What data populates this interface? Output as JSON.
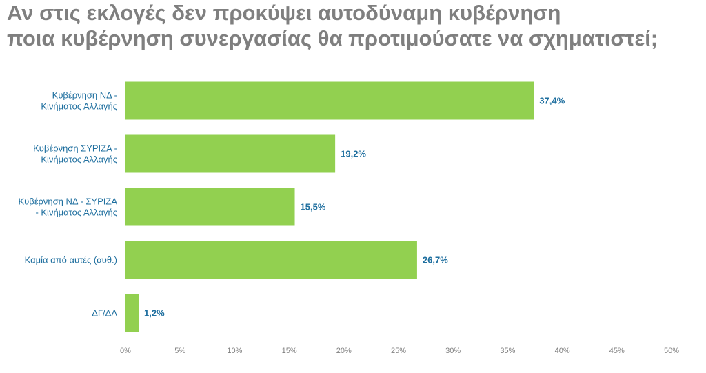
{
  "title_lines": [
    "Αν στις εκλογές δεν προκύψει αυτοδύναμη κυβέρνηση",
    "ποια κυβέρνηση συνεργασίας θα προτιμούσατε να σχηματιστεί;"
  ],
  "chart_data": {
    "type": "bar",
    "orientation": "horizontal",
    "title": "Αν στις εκλογές δεν προκύψει αυτοδύναμη κυβέρνηση ποια κυβέρνηση συνεργασίας θα προτιμούσατε να σχηματιστεί;",
    "categories": [
      [
        "Κυβέρνηση ΝΔ -",
        "Κινήματος Αλλαγής"
      ],
      [
        "Κυβέρνηση ΣΥΡΙΖΑ -",
        "Κινήματος Αλλαγής"
      ],
      [
        "Κυβέρνηση ΝΔ - ΣΥΡΙΖΑ",
        "- Κινήματος Αλλαγής"
      ],
      [
        "Καμία από αυτές (αυθ.)"
      ],
      [
        "ΔΓ/ΔΑ"
      ]
    ],
    "values": [
      37.4,
      19.2,
      15.5,
      26.7,
      1.2
    ],
    "value_labels": [
      "37,4%",
      "19,2%",
      "15,5%",
      "26,7%",
      "1,2%"
    ],
    "xlim": [
      0,
      50
    ],
    "ticks": [
      0,
      5,
      10,
      15,
      20,
      25,
      30,
      35,
      40,
      45,
      50
    ],
    "tick_labels": [
      "0%",
      "5%",
      "10%",
      "15%",
      "20%",
      "25%",
      "30%",
      "35%",
      "40%",
      "45%",
      "50%"
    ],
    "bar_color": "#92d050",
    "label_color": "#1f6f9f",
    "tick_color": "#7f7f7f",
    "grid": false,
    "legend": "none"
  }
}
